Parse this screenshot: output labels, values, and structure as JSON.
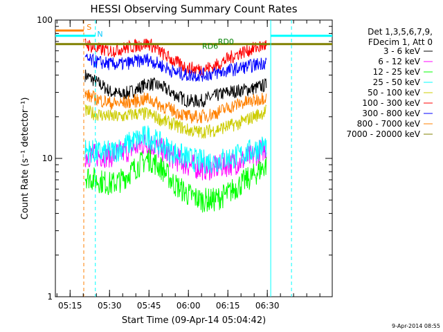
{
  "chart_data": {
    "type": "line",
    "title": "HESSI Observing Summary Count Rates",
    "xlabel": "Start Time (09-Apr-14 05:04:42)",
    "ylabel": "Count Rate (s⁻¹ detector⁻¹)",
    "yscale": "log",
    "ylim": [
      1,
      100
    ],
    "xlim_min": [
      4.7,
      110
    ],
    "x_ticks": [
      "05:15",
      "05:30",
      "05:45",
      "06:00",
      "06:15",
      "06:30"
    ],
    "x_tick_minutes": [
      10.3,
      25.3,
      40.3,
      55.3,
      70.3,
      85.3
    ],
    "y_ticks": [
      "1",
      "10",
      "100"
    ],
    "grid": false,
    "legend_position": "right",
    "legend_header": [
      "Det 1,3,5,6,7,9,",
      "FDecim 1, Att 0"
    ],
    "series": [
      {
        "name": "3 - 6 keV",
        "color": "#000000",
        "t": [
          16,
          20,
          26,
          30,
          35,
          40,
          45,
          50,
          55,
          60,
          65,
          70,
          75,
          80,
          85
        ],
        "values": [
          40,
          36,
          30,
          29,
          31,
          35,
          33,
          29,
          26,
          26,
          28,
          30,
          31,
          32,
          34
        ]
      },
      {
        "name": "6 - 12 keV",
        "color": "#ff00ff",
        "t": [
          16,
          20,
          26,
          30,
          35,
          40,
          45,
          50,
          55,
          60,
          65,
          70,
          75,
          80,
          85
        ],
        "values": [
          10.5,
          10.5,
          10.5,
          11,
          12,
          13,
          11.5,
          10,
          9,
          8.5,
          8.5,
          9,
          9.5,
          10.5,
          12
        ]
      },
      {
        "name": "12 - 25 keV",
        "color": "#00ff00",
        "t": [
          16,
          20,
          26,
          30,
          35,
          40,
          45,
          50,
          55,
          60,
          65,
          70,
          75,
          80,
          85
        ],
        "values": [
          7.5,
          7,
          6.5,
          7,
          8.5,
          10,
          8.5,
          6.5,
          5.5,
          5,
          5,
          5.5,
          6.5,
          7.5,
          9
        ]
      },
      {
        "name": "25 - 50 keV",
        "color": "#00ffff",
        "t": [
          16,
          20,
          26,
          30,
          35,
          40,
          45,
          50,
          55,
          60,
          65,
          70,
          75,
          80,
          85
        ],
        "values": [
          11.5,
          11,
          11,
          12,
          13.5,
          14.5,
          12.5,
          11,
          10,
          9.5,
          9.5,
          10,
          10.5,
          11.5,
          12.5
        ]
      },
      {
        "name": "50 - 100 keV",
        "color": "#cccc00",
        "t": [
          16,
          20,
          26,
          30,
          35,
          40,
          45,
          50,
          55,
          60,
          65,
          70,
          75,
          80,
          85
        ],
        "values": [
          22,
          21,
          20,
          20,
          21,
          21,
          19,
          17.5,
          16,
          15.5,
          16,
          17,
          18,
          20,
          22
        ]
      },
      {
        "name": "100 - 300 keV",
        "color": "#ff0000",
        "t": [
          16,
          20,
          26,
          30,
          35,
          40,
          45,
          50,
          55,
          60,
          65,
          70,
          75,
          80,
          85
        ],
        "values": [
          68,
          62,
          60,
          62,
          65,
          68,
          58,
          50,
          45,
          44,
          46,
          52,
          58,
          62,
          66
        ]
      },
      {
        "name": "300 - 800 keV",
        "color": "#0000ff",
        "t": [
          16,
          20,
          26,
          30,
          35,
          40,
          45,
          50,
          55,
          60,
          65,
          70,
          75,
          80,
          85
        ],
        "values": [
          52,
          50,
          48,
          48,
          50,
          52,
          47,
          42,
          40,
          40,
          41,
          43,
          45,
          47,
          50
        ]
      },
      {
        "name": "800 - 7000 keV",
        "color": "#ff8000",
        "t": [
          16,
          20,
          26,
          30,
          35,
          40,
          45,
          50,
          55,
          60,
          65,
          70,
          75,
          80,
          85
        ],
        "values": [
          29,
          27,
          25,
          25,
          26,
          27,
          24,
          22,
          20,
          20,
          21,
          23,
          25,
          26,
          28
        ]
      },
      {
        "name": "7000 - 20000 keV",
        "color": "#808000",
        "t": [
          16,
          20,
          26,
          30,
          35,
          40,
          45,
          50,
          55,
          60,
          65,
          70,
          75,
          80,
          85
        ],
        "values": [
          67,
          67,
          67,
          67,
          67,
          67,
          67,
          67,
          67,
          67,
          67,
          67,
          67,
          67,
          67
        ]
      }
    ],
    "annotations": [
      {
        "text": "S",
        "color": "#ff8000"
      },
      {
        "text": "N",
        "color": "#00c8ff"
      },
      {
        "text": "RD6",
        "color": "#008000"
      },
      {
        "text": "RD0",
        "color": "#008000"
      }
    ]
  },
  "footer_timestamp": "9-Apr-2014 08:55"
}
